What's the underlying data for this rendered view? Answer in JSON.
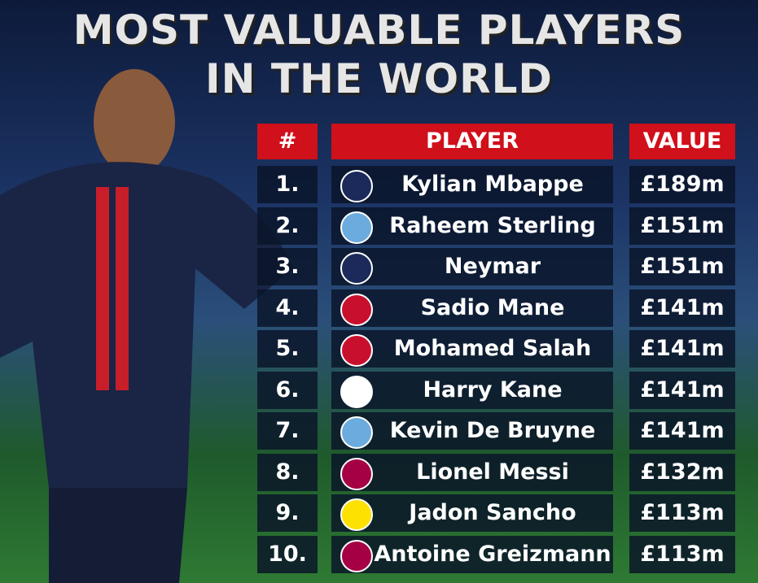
{
  "title": [
    "MOST VALUABLE PLAYERS",
    "IN THE WORLD"
  ],
  "table": {
    "header": [
      "#",
      "PLAYER",
      "VALUE"
    ],
    "rows": [
      [
        "1.",
        "Kylian Mbappe",
        "£189m"
      ],
      [
        "2.",
        "Raheem Sterling",
        "£151m"
      ],
      [
        "3.",
        "Neymar",
        "£151m"
      ],
      [
        "4.",
        "Sadio Mane",
        "£141m"
      ],
      [
        "5.",
        "Mohamed Salah",
        "£141m"
      ],
      [
        "6.",
        "Harry Kane",
        "£141m"
      ],
      [
        "7.",
        "Kevin De Bruyne",
        "£141m"
      ],
      [
        "8.",
        "Lionel Messi",
        "£132m"
      ],
      [
        "9.",
        "Jadon Sancho",
        "£113m"
      ],
      [
        "10.",
        "Antoine Greizmann",
        "£113m"
      ]
    ]
  }
}
